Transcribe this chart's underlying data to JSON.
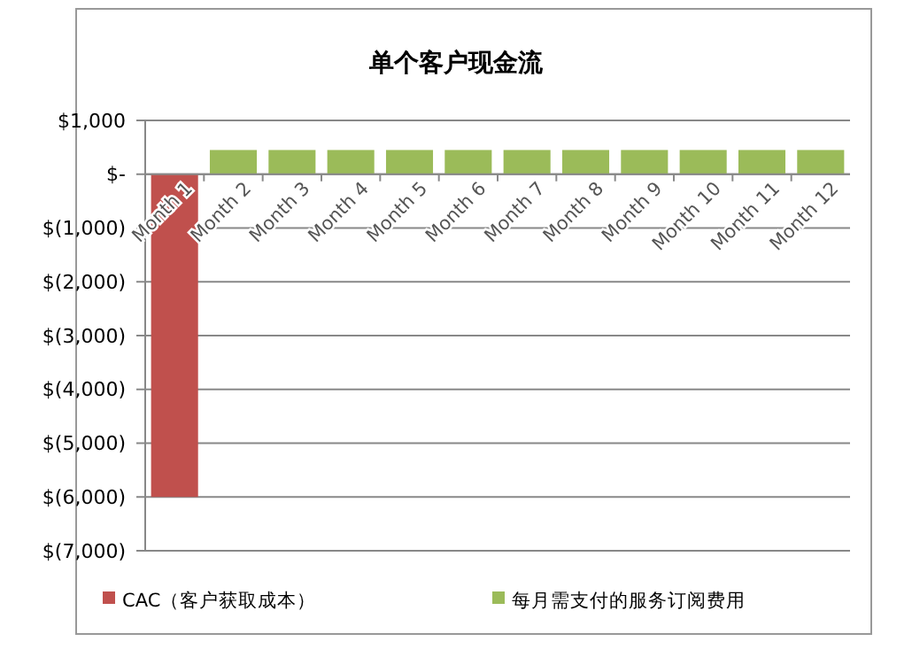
{
  "chart_data": {
    "type": "bar",
    "title": "单个客户现金流",
    "categories": [
      "Month 1",
      "Month 2",
      "Month 3",
      "Month 4",
      "Month 5",
      "Month 6",
      "Month 7",
      "Month 8",
      "Month 9",
      "Month 10",
      "Month 11",
      "Month 12"
    ],
    "series": [
      {
        "name": "CAC（客户获取成本）",
        "color": "#c0504d",
        "values": [
          -6000,
          null,
          null,
          null,
          null,
          null,
          null,
          null,
          null,
          null,
          null,
          null
        ]
      },
      {
        "name": "每月需支付的服务订阅费用",
        "color": "#9bbb59",
        "values": [
          null,
          450,
          450,
          450,
          450,
          450,
          450,
          450,
          450,
          450,
          450,
          450
        ]
      }
    ],
    "stacked": true,
    "ylim": [
      -7000,
      1000
    ],
    "yticks": [
      {
        "value": 1000,
        "label": "$1,000"
      },
      {
        "value": 0,
        "label": "$-"
      },
      {
        "value": -1000,
        "label": "$(1,000)"
      },
      {
        "value": -2000,
        "label": "$(2,000)"
      },
      {
        "value": -3000,
        "label": "$(3,000)"
      },
      {
        "value": -4000,
        "label": "$(4,000)"
      },
      {
        "value": -5000,
        "label": "$(5,000)"
      },
      {
        "value": -6000,
        "label": "$(6,000)"
      },
      {
        "value": -7000,
        "label": "$(7,000)"
      }
    ],
    "grid": "y",
    "legend": "bottom"
  }
}
